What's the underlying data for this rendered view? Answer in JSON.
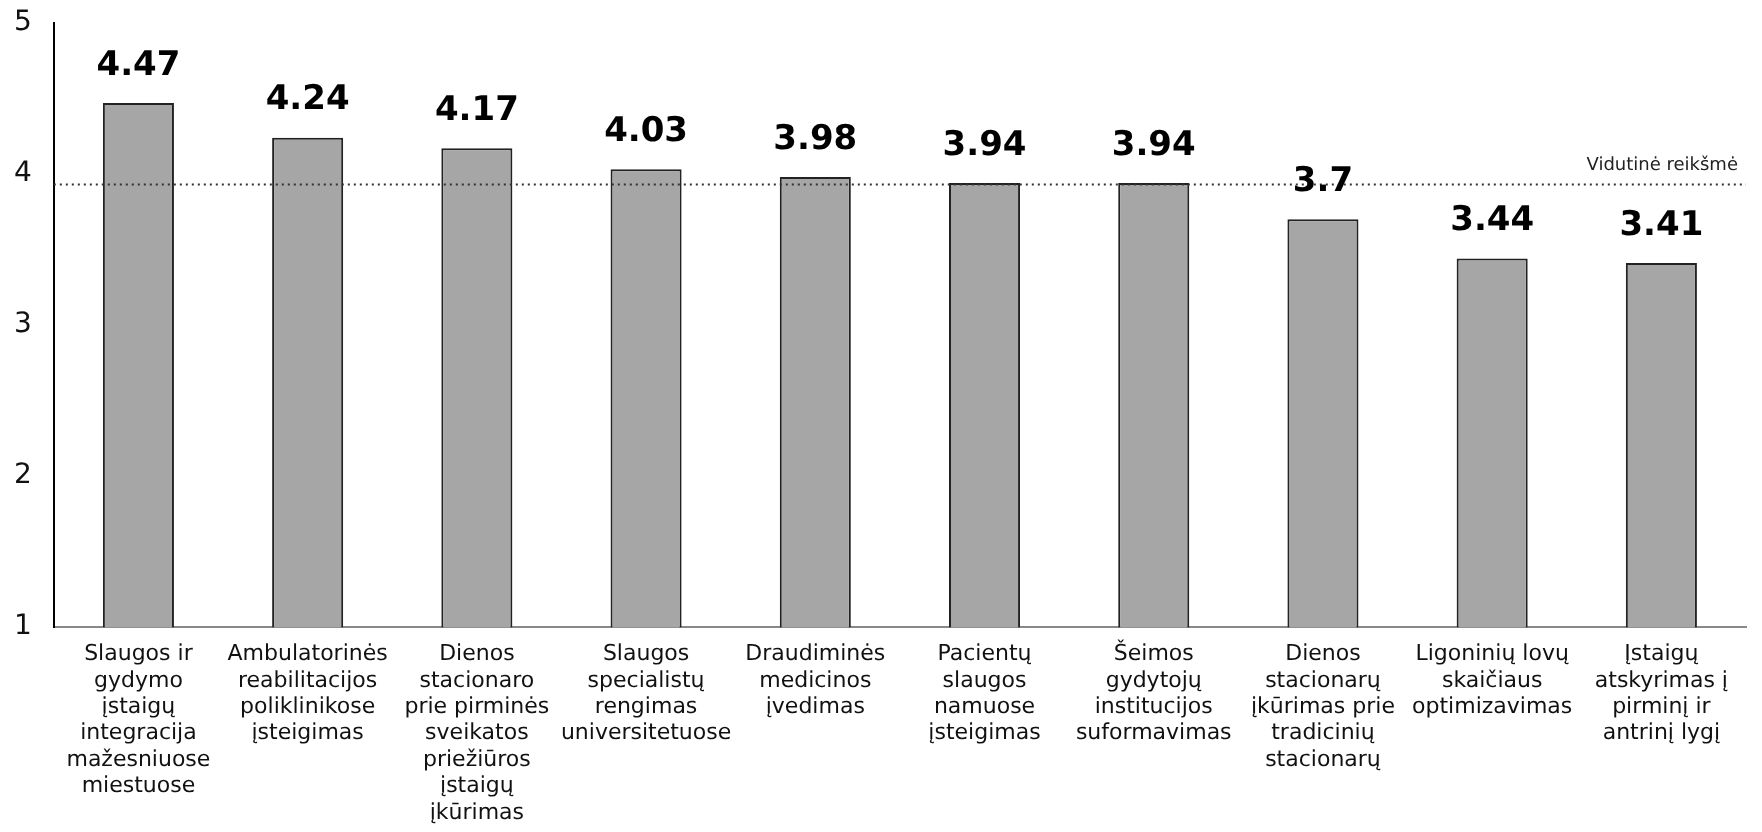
{
  "chart_data": {
    "type": "bar",
    "categories": [
      "Slaugos ir gydymo įstaigų integracija mažesniuose miestuose",
      "Ambulatorinės reabilitacijos poliklinikose įsteigimas",
      "Dienos stacionaro prie pirminės sveikatos priežiūros įstaigų įkūrimas",
      "Slaugos specialistų rengimas universitetuose",
      "Draudiminės medicinos įvedimas",
      "Pacientų slaugos namuose įsteigimas",
      "Šeimos gydytojų institucijos suformavimas",
      "Dienos stacionarų įkūrimas prie tradicinių stacionarų",
      "Ligoninių lovų skaičiaus optimizavimas",
      "Įstaigų atskyrimas į pirminį ir antrinį lygį"
    ],
    "values": [
      4.47,
      4.24,
      4.17,
      4.03,
      3.98,
      3.94,
      3.94,
      3.7,
      3.44,
      3.41
    ],
    "color": "#a6a6a6",
    "ylim": [
      1,
      5
    ],
    "yticks": [
      1,
      2,
      3,
      4,
      5
    ],
    "grid": false,
    "legend": false,
    "data_labels": true,
    "ref_lines": [
      {
        "axis": "y",
        "value": 3.93,
        "label": "Vidutinė reikšmė",
        "line_style": "dotted",
        "color": "#333333"
      }
    ]
  }
}
